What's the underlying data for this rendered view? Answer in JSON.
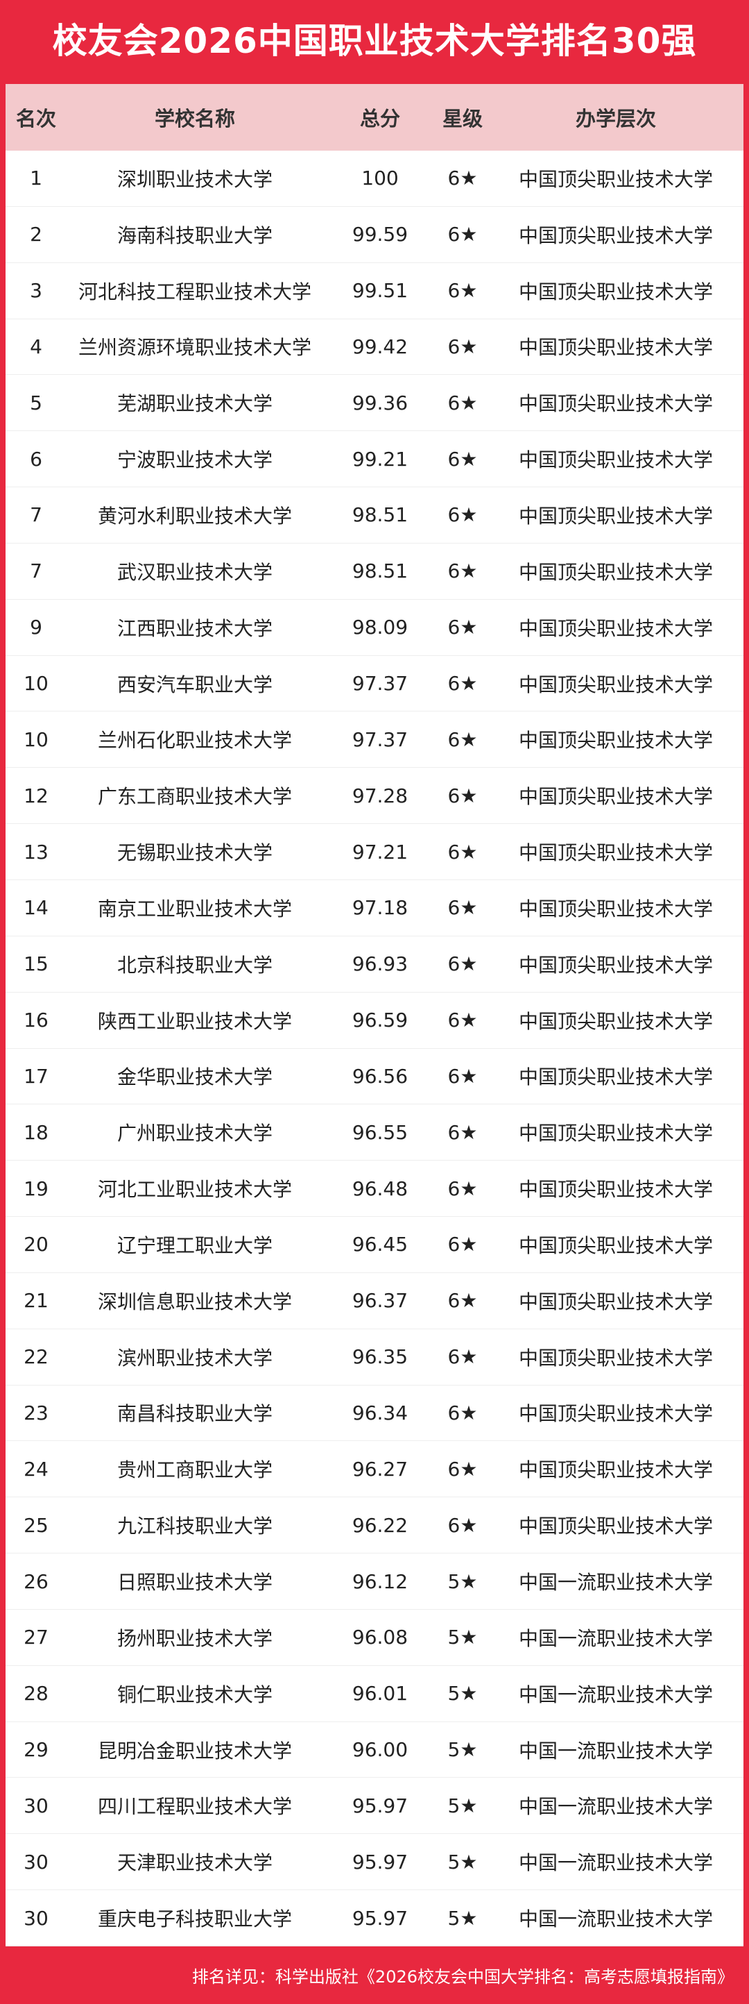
{
  "header": {
    "title": "校友会2026中国职业技术大学排名30强"
  },
  "table": {
    "columns": [
      "名次",
      "学校名称",
      "总分",
      "星级",
      "办学层次"
    ],
    "rows": [
      [
        1,
        "深圳职业技术大学",
        "100",
        "6★",
        "中国顶尖职业技术大学"
      ],
      [
        2,
        "海南科技职业大学",
        "99.59",
        "6★",
        "中国顶尖职业技术大学"
      ],
      [
        3,
        "河北科技工程职业技术大学",
        "99.51",
        "6★",
        "中国顶尖职业技术大学"
      ],
      [
        4,
        "兰州资源环境职业技术大学",
        "99.42",
        "6★",
        "中国顶尖职业技术大学"
      ],
      [
        5,
        "芜湖职业技术大学",
        "99.36",
        "6★",
        "中国顶尖职业技术大学"
      ],
      [
        6,
        "宁波职业技术大学",
        "99.21",
        "6★",
        "中国顶尖职业技术大学"
      ],
      [
        7,
        "黄河水利职业技术大学",
        "98.51",
        "6★",
        "中国顶尖职业技术大学"
      ],
      [
        7,
        "武汉职业技术大学",
        "98.51",
        "6★",
        "中国顶尖职业技术大学"
      ],
      [
        9,
        "江西职业技术大学",
        "98.09",
        "6★",
        "中国顶尖职业技术大学"
      ],
      [
        10,
        "西安汽车职业大学",
        "97.37",
        "6★",
        "中国顶尖职业技术大学"
      ],
      [
        10,
        "兰州石化职业技术大学",
        "97.37",
        "6★",
        "中国顶尖职业技术大学"
      ],
      [
        12,
        "广东工商职业技术大学",
        "97.28",
        "6★",
        "中国顶尖职业技术大学"
      ],
      [
        13,
        "无锡职业技术大学",
        "97.21",
        "6★",
        "中国顶尖职业技术大学"
      ],
      [
        14,
        "南京工业职业技术大学",
        "97.18",
        "6★",
        "中国顶尖职业技术大学"
      ],
      [
        15,
        "北京科技职业大学",
        "96.93",
        "6★",
        "中国顶尖职业技术大学"
      ],
      [
        16,
        "陕西工业职业技术大学",
        "96.59",
        "6★",
        "中国顶尖职业技术大学"
      ],
      [
        17,
        "金华职业技术大学",
        "96.56",
        "6★",
        "中国顶尖职业技术大学"
      ],
      [
        18,
        "广州职业技术大学",
        "96.55",
        "6★",
        "中国顶尖职业技术大学"
      ],
      [
        19,
        "河北工业职业技术大学",
        "96.48",
        "6★",
        "中国顶尖职业技术大学"
      ],
      [
        20,
        "辽宁理工职业大学",
        "96.45",
        "6★",
        "中国顶尖职业技术大学"
      ],
      [
        21,
        "深圳信息职业技术大学",
        "96.37",
        "6★",
        "中国顶尖职业技术大学"
      ],
      [
        22,
        "滨州职业技术大学",
        "96.35",
        "6★",
        "中国顶尖职业技术大学"
      ],
      [
        23,
        "南昌科技职业大学",
        "96.34",
        "6★",
        "中国顶尖职业技术大学"
      ],
      [
        24,
        "贵州工商职业大学",
        "96.27",
        "6★",
        "中国顶尖职业技术大学"
      ],
      [
        25,
        "九江科技职业大学",
        "96.22",
        "6★",
        "中国顶尖职业技术大学"
      ],
      [
        26,
        "日照职业技术大学",
        "96.12",
        "5★",
        "中国一流职业技术大学"
      ],
      [
        27,
        "扬州职业技术大学",
        "96.08",
        "5★",
        "中国一流职业技术大学"
      ],
      [
        28,
        "铜仁职业技术大学",
        "96.01",
        "5★",
        "中国一流职业技术大学"
      ],
      [
        29,
        "昆明冶金职业技术大学",
        "96.00",
        "5★",
        "中国一流职业技术大学"
      ],
      [
        30,
        "四川工程职业技术大学",
        "95.97",
        "5★",
        "中国一流职业技术大学"
      ],
      [
        30,
        "天津职业技术大学",
        "95.97",
        "5★",
        "中国一流职业技术大学"
      ],
      [
        30,
        "重庆电子科技职业大学",
        "95.97",
        "5★",
        "中国一流职业技术大学"
      ]
    ]
  },
  "footer": {
    "note": "排名详见：科学出版社《2026校友会中国大学排名：高考志愿填报指南》"
  }
}
